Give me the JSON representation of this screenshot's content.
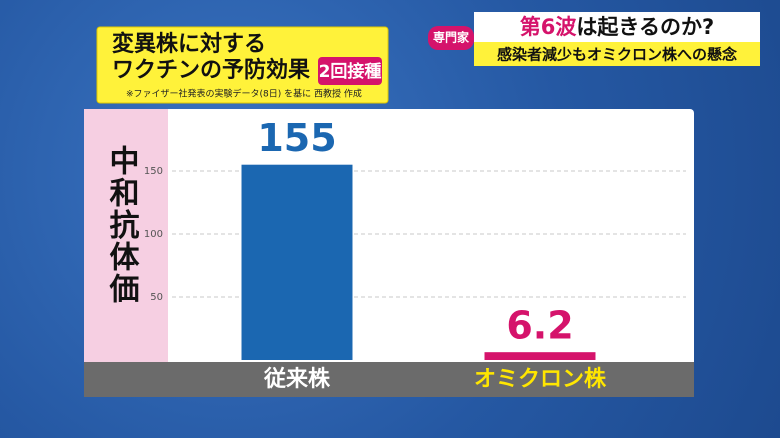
{
  "header": {
    "title_lines": [
      "変異株に対する",
      "ワクチンの予防効果"
    ],
    "badge": "2回接種",
    "note": "※ファイザー社発表の実験データ(8日) を基に 西教授 作成",
    "tag": "専門家",
    "headline_em": "第6波",
    "headline_rest": "は起きるのか?",
    "subheadline": "感染者減少もオミクロン株への懸念"
  },
  "chart_data": {
    "type": "bar",
    "y_label": "中和抗体価",
    "categories": [
      "従来株",
      "オミクロン株"
    ],
    "values": [
      155,
      6.2
    ],
    "colors": [
      "#1b67b1",
      "#d5136b"
    ],
    "label_colors": [
      "#ffffff",
      "#ffe600"
    ],
    "ylim": [
      0,
      200
    ],
    "yticks": [
      50,
      100,
      150
    ],
    "grid": true
  }
}
